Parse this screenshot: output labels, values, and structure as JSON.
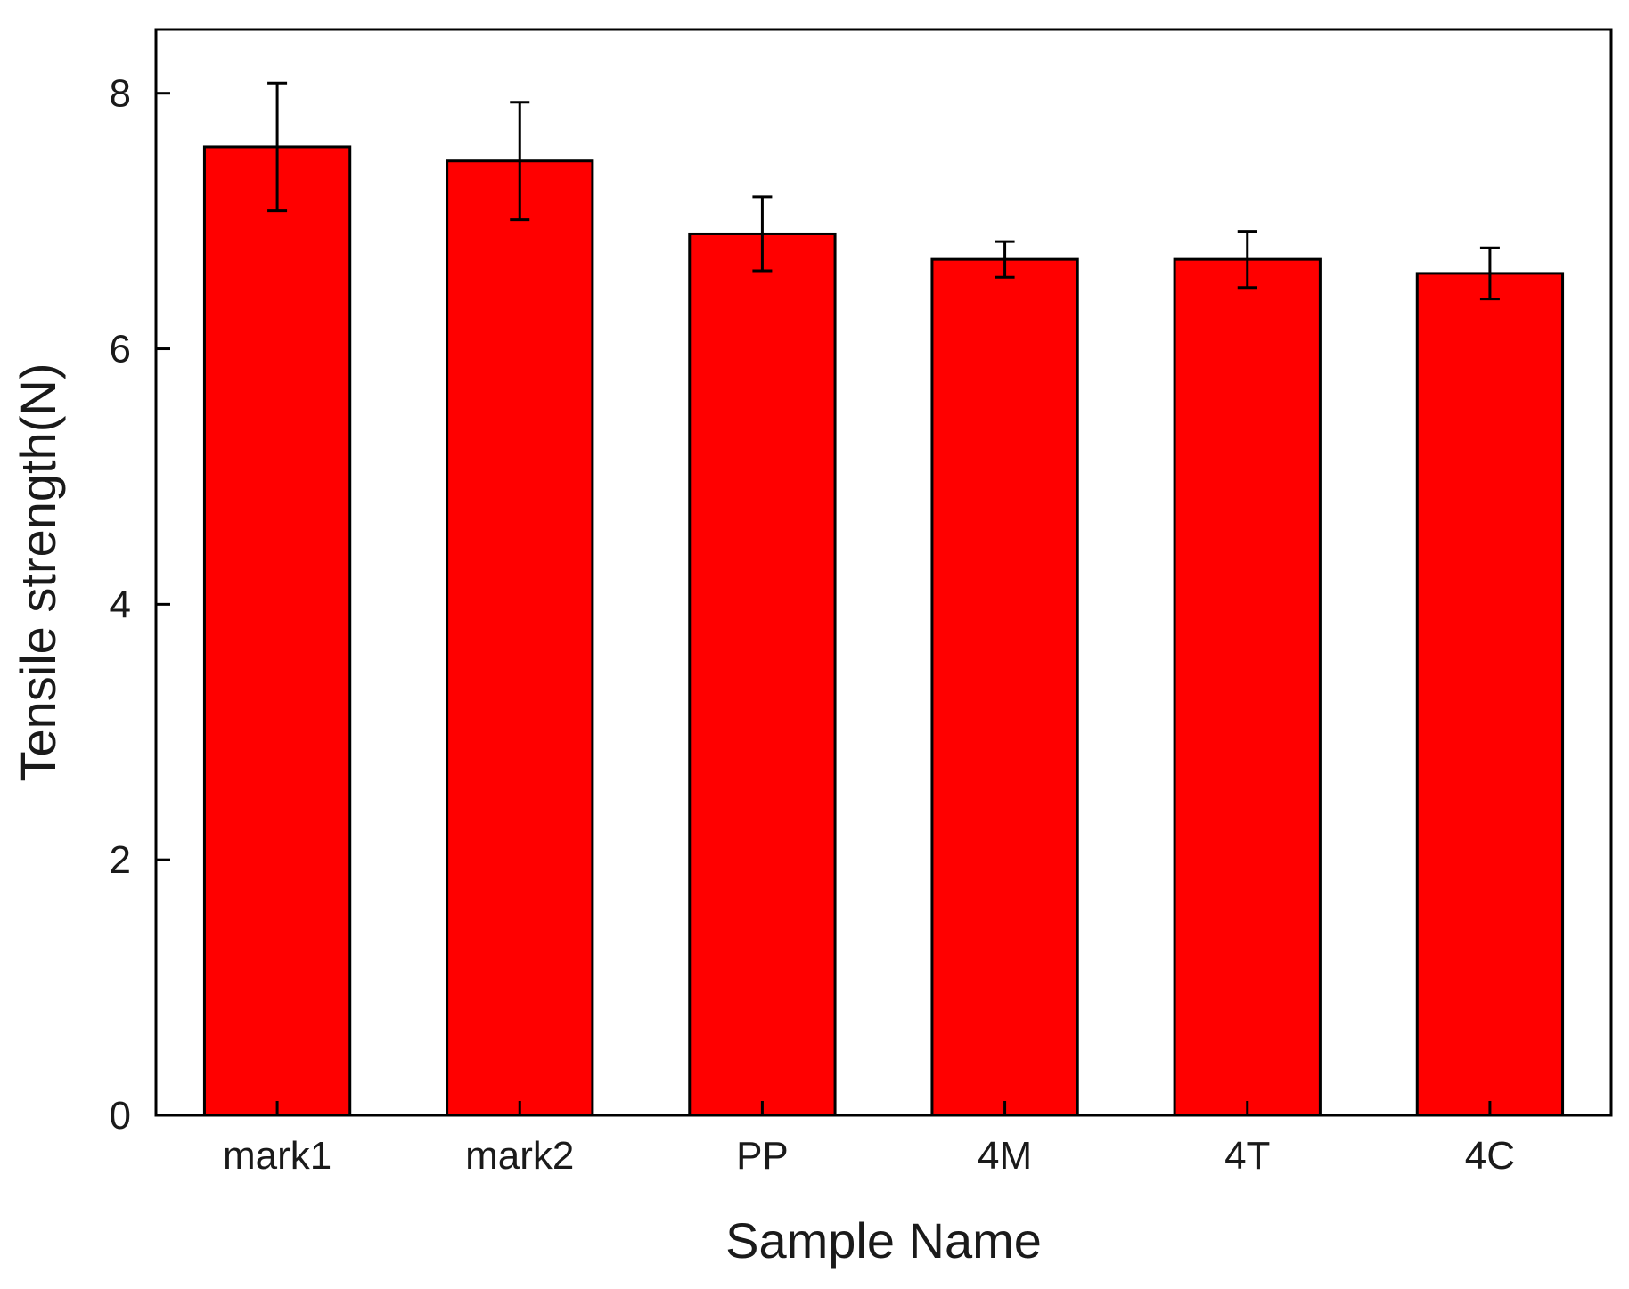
{
  "chart_data": {
    "type": "bar",
    "title": "",
    "xlabel": "Sample Name",
    "ylabel": "Tensile strength(N)",
    "categories": [
      "mark1",
      "mark2",
      "PP",
      "4M",
      "4T",
      "4C"
    ],
    "values": [
      7.58,
      7.47,
      6.9,
      6.7,
      6.7,
      6.59
    ],
    "error": [
      0.5,
      0.46,
      0.29,
      0.14,
      0.22,
      0.2
    ],
    "ylim": [
      0,
      8.5
    ],
    "yticks": [
      0,
      2,
      4,
      6,
      8
    ],
    "grid": false,
    "legend": "none",
    "bar_color": "#ff0000",
    "bar_edge_color": "#000000"
  }
}
